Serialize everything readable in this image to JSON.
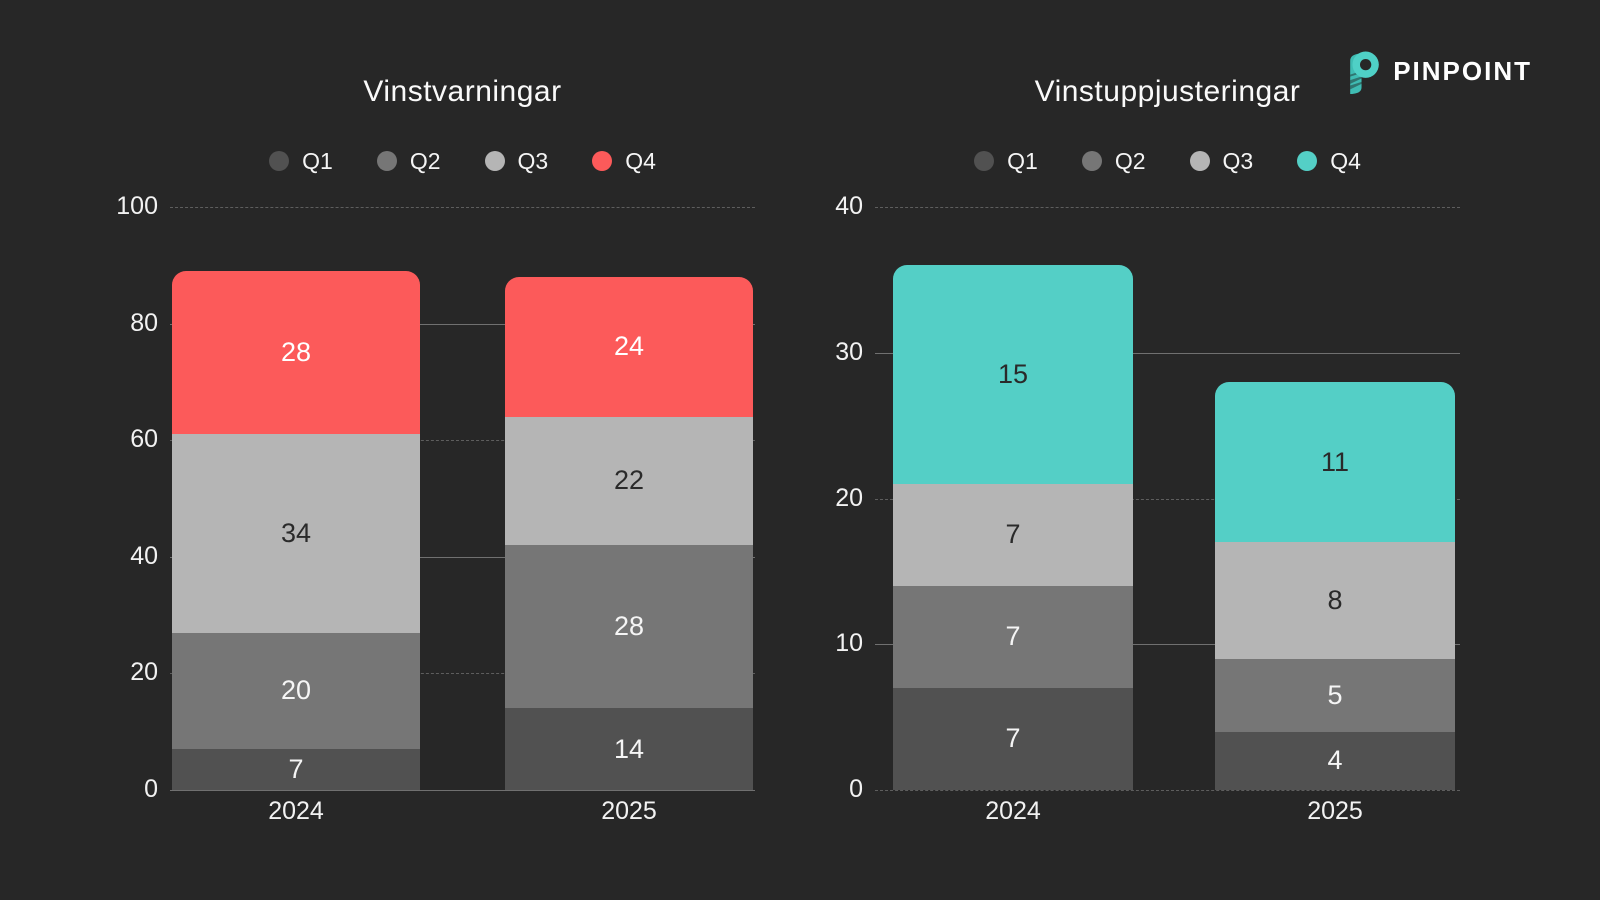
{
  "page": {
    "background": "#272727"
  },
  "logo": {
    "text": "PINPOINT",
    "icon": "pinpoint-p-icon",
    "accent_color": "#4fd0c6"
  },
  "chart_data": [
    {
      "type": "bar",
      "stacked": true,
      "title": "Vinstvarningar",
      "categories": [
        "2024",
        "2025"
      ],
      "series": [
        {
          "name": "Q1",
          "color": "#515151",
          "label_color": "#f5f5f5",
          "values": [
            7,
            14
          ]
        },
        {
          "name": "Q2",
          "color": "#767676",
          "label_color": "#f5f5f5",
          "values": [
            20,
            28
          ]
        },
        {
          "name": "Q3",
          "color": "#b5b5b5",
          "label_color": "#2a2a2a",
          "values": [
            34,
            22
          ]
        },
        {
          "name": "Q4",
          "color": "#fc5a5a",
          "label_color": "#ffffff",
          "values": [
            28,
            24
          ]
        }
      ],
      "totals": [
        89,
        88
      ],
      "xlabel": "",
      "ylabel": "",
      "ylim": [
        0,
        100
      ],
      "yticks": [
        0,
        20,
        40,
        60,
        80,
        100
      ],
      "grid": true,
      "legend_position": "top"
    },
    {
      "type": "bar",
      "stacked": true,
      "title": "Vinstuppjusteringar",
      "categories": [
        "2024",
        "2025"
      ],
      "series": [
        {
          "name": "Q1",
          "color": "#515151",
          "label_color": "#f5f5f5",
          "values": [
            7,
            4
          ]
        },
        {
          "name": "Q2",
          "color": "#767676",
          "label_color": "#f5f5f5",
          "values": [
            7,
            5
          ]
        },
        {
          "name": "Q3",
          "color": "#b5b5b5",
          "label_color": "#2a2a2a",
          "values": [
            7,
            8
          ]
        },
        {
          "name": "Q4",
          "color": "#54cfc6",
          "label_color": "#2a2a2a",
          "values": [
            15,
            11
          ]
        }
      ],
      "totals": [
        36,
        28
      ],
      "xlabel": "",
      "ylabel": "",
      "ylim": [
        0,
        40
      ],
      "yticks": [
        0,
        10,
        20,
        30,
        40
      ],
      "grid": true,
      "legend_position": "top"
    }
  ]
}
